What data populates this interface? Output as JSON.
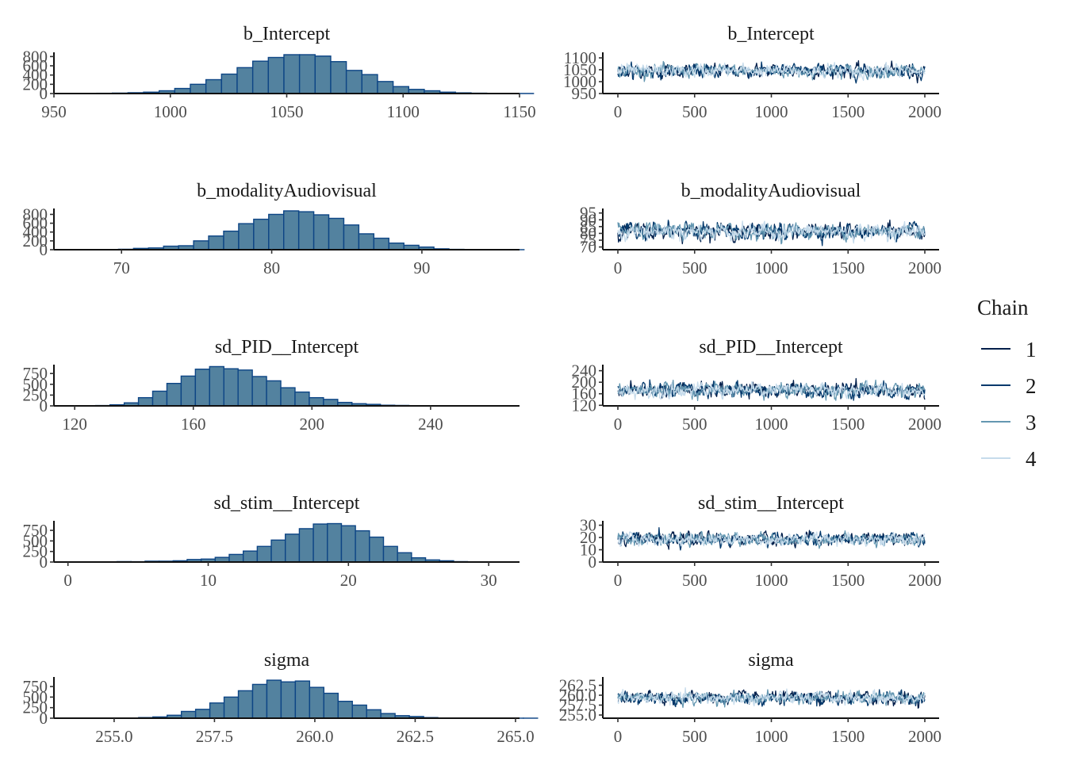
{
  "legend": {
    "title": "Chain",
    "items": [
      {
        "label": "1",
        "color": "#011f4b"
      },
      {
        "label": "2",
        "color": "#03396c"
      },
      {
        "label": "3",
        "color": "#6497b1"
      },
      {
        "label": "4",
        "color": "#c6dbeb"
      }
    ]
  },
  "colors": {
    "bar_fill": "#53829f",
    "bar_edge": "#0d4585"
  },
  "chart_data": [
    {
      "type": "bar",
      "kind": "histogram",
      "title": "b_Intercept",
      "xlim": [
        950,
        1150
      ],
      "ylim": [
        0,
        840
      ],
      "xticks": [
        "950",
        "1000",
        "1050",
        "1100",
        "1150"
      ],
      "xtick_values": [
        950,
        1000,
        1050,
        1100,
        1150
      ],
      "yticks": [
        "0",
        "200",
        "400",
        "600",
        "800"
      ],
      "ytick_values": [
        0,
        200,
        400,
        600,
        800
      ],
      "bins_start": 955,
      "bin_width": 6.7,
      "values": [
        2,
        4,
        6,
        10,
        18,
        30,
        60,
        110,
        200,
        300,
        420,
        560,
        700,
        780,
        840,
        840,
        810,
        690,
        500,
        410,
        260,
        150,
        90,
        60,
        30,
        15,
        8,
        5,
        3,
        2
      ]
    },
    {
      "type": "line",
      "kind": "trace",
      "title": "b_Intercept",
      "xlim": [
        0,
        2000
      ],
      "ylim": [
        950,
        1110
      ],
      "xticks": [
        "0",
        "500",
        "1000",
        "1500",
        "2000"
      ],
      "xtick_values": [
        0,
        500,
        1000,
        1500,
        2000
      ],
      "yticks": [
        "950",
        "1000",
        "1050",
        "1100"
      ],
      "ytick_values": [
        950,
        1000,
        1050,
        1100
      ],
      "center": 1045,
      "spread": 22,
      "n_iter": 2000
    },
    {
      "type": "bar",
      "kind": "histogram",
      "title": "b_modalityAudiovisual",
      "xlim": [
        65.5,
        96.5
      ],
      "ylim": [
        0,
        880
      ],
      "xticks": [
        "70",
        "80",
        "90"
      ],
      "xtick_values": [
        70,
        80,
        90
      ],
      "yticks": [
        "0",
        "200",
        "400",
        "600",
        "800"
      ],
      "ytick_values": [
        0,
        200,
        400,
        600,
        800
      ],
      "bins_start": 66.8,
      "bin_width": 1.0,
      "values": [
        2,
        3,
        5,
        10,
        30,
        40,
        80,
        90,
        200,
        310,
        420,
        590,
        690,
        800,
        880,
        860,
        790,
        710,
        560,
        360,
        260,
        150,
        100,
        60,
        20,
        8,
        4,
        2,
        1,
        1
      ]
    },
    {
      "type": "line",
      "kind": "trace",
      "title": "b_modalityAudiovisual",
      "xlim": [
        0,
        2000
      ],
      "ylim": [
        68,
        96
      ],
      "xticks": [
        "0",
        "500",
        "1000",
        "1500",
        "2000"
      ],
      "xtick_values": [
        0,
        500,
        1000,
        1500,
        2000
      ],
      "yticks": [
        "70",
        "75",
        "80",
        "85",
        "90",
        "95"
      ],
      "ytick_values": [
        70,
        75,
        80,
        85,
        90,
        95
      ],
      "center": 81.5,
      "spread": 4.5,
      "n_iter": 2000
    },
    {
      "type": "bar",
      "kind": "histogram",
      "title": "sd_PID__Intercept",
      "xlim": [
        113,
        270
      ],
      "ylim": [
        0,
        900
      ],
      "xticks": [
        "120",
        "160",
        "200",
        "240"
      ],
      "xtick_values": [
        120,
        160,
        200,
        240
      ],
      "yticks": [
        "0",
        "250",
        "500",
        "750"
      ],
      "ytick_values": [
        0,
        250,
        500,
        750
      ],
      "bins_start": 117.5,
      "bin_width": 4.8,
      "values": [
        1,
        3,
        8,
        25,
        70,
        190,
        340,
        520,
        690,
        850,
        910,
        860,
        830,
        680,
        580,
        420,
        320,
        190,
        150,
        80,
        50,
        35,
        15,
        10,
        5,
        3,
        2,
        1,
        1,
        1
      ]
    },
    {
      "type": "line",
      "kind": "trace",
      "title": "sd_PID__Intercept",
      "xlim": [
        0,
        2000
      ],
      "ylim": [
        118,
        250
      ],
      "xticks": [
        "0",
        "500",
        "1000",
        "1500",
        "2000"
      ],
      "xtick_values": [
        0,
        500,
        1000,
        1500,
        2000
      ],
      "yticks": [
        "120",
        "160",
        "200",
        "240"
      ],
      "ytick_values": [
        120,
        160,
        200,
        240
      ],
      "center": 172,
      "spread": 20,
      "n_iter": 2000
    },
    {
      "type": "bar",
      "kind": "histogram",
      "title": "sd_stim__Intercept",
      "xlim": [
        -1,
        32.2
      ],
      "ylim": [
        0,
        920
      ],
      "xticks": [
        "0",
        "10",
        "20",
        "30"
      ],
      "xtick_values": [
        0,
        10,
        20,
        30
      ],
      "yticks": [
        "0",
        "250",
        "500",
        "750"
      ],
      "ytick_values": [
        0,
        250,
        500,
        750
      ],
      "bins_start": 0.5,
      "bin_width": 1.0,
      "values": [
        3,
        5,
        5,
        10,
        8,
        20,
        20,
        30,
        60,
        70,
        110,
        180,
        260,
        370,
        520,
        660,
        790,
        900,
        910,
        860,
        740,
        590,
        370,
        220,
        100,
        50,
        30,
        10,
        5,
        2
      ]
    },
    {
      "type": "line",
      "kind": "trace",
      "title": "sd_stim__Intercept",
      "xlim": [
        0,
        2000
      ],
      "ylim": [
        0,
        31
      ],
      "xticks": [
        "0",
        "500",
        "1000",
        "1500",
        "2000"
      ],
      "xtick_values": [
        0,
        500,
        1000,
        1500,
        2000
      ],
      "yticks": [
        "0",
        "10",
        "20",
        "30"
      ],
      "ytick_values": [
        0,
        10,
        20,
        30
      ],
      "center": 18.5,
      "spread": 4,
      "n_iter": 2000
    },
    {
      "type": "bar",
      "kind": "histogram",
      "title": "sigma",
      "xlim": [
        253.5,
        265.1
      ],
      "ylim": [
        0,
        920
      ],
      "xticks": [
        "255.0",
        "257.5",
        "260.0",
        "262.5",
        "265.0"
      ],
      "xtick_values": [
        255.0,
        257.5,
        260.0,
        262.5,
        265.0
      ],
      "yticks": [
        "0",
        "250",
        "500",
        "750"
      ],
      "ytick_values": [
        0,
        250,
        500,
        750
      ],
      "bins_start": 254.9,
      "bin_width": 0.355,
      "values": [
        2,
        5,
        15,
        30,
        70,
        160,
        210,
        360,
        500,
        650,
        800,
        900,
        860,
        880,
        730,
        590,
        400,
        310,
        200,
        110,
        60,
        40,
        15,
        5,
        3,
        2,
        1,
        1,
        1,
        1
      ]
    },
    {
      "type": "line",
      "kind": "trace",
      "title": "sigma",
      "xlim": [
        0,
        2000
      ],
      "ylim": [
        254.2,
        263.8
      ],
      "xticks": [
        "0",
        "500",
        "1000",
        "1500",
        "2000"
      ],
      "xtick_values": [
        0,
        500,
        1000,
        1500,
        2000
      ],
      "yticks": [
        "255.0",
        "257.5",
        "260.0",
        "262.5"
      ],
      "ytick_values": [
        255.0,
        257.5,
        260.0,
        262.5
      ],
      "center": 259.3,
      "spread": 1.25,
      "n_iter": 2000
    }
  ]
}
